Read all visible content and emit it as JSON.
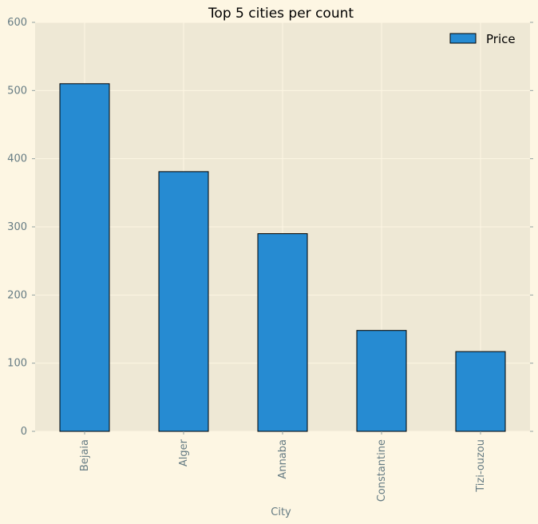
{
  "chart_data": {
    "type": "bar",
    "title": "Top 5 cities per count",
    "xlabel": "City",
    "ylabel": "",
    "categories": [
      "Bejaia",
      "Alger",
      "Annaba",
      "Constantine",
      "Tizi-ouzou"
    ],
    "series": [
      {
        "name": "Price",
        "values": [
          510,
          381,
          290,
          148,
          117
        ]
      }
    ],
    "ylim": [
      0,
      600
    ],
    "yticks": [
      0,
      100,
      200,
      300,
      400,
      500,
      600
    ],
    "grid": true,
    "legend_position": "top-right",
    "colors": {
      "background": "#fdf6e3",
      "plot_background": "#eee8d5",
      "bar": "#268bd2",
      "bar_edge": "#000000",
      "grid": "#fdf6e3",
      "tick_text": "#657b83",
      "axis_spine": "#93a1a1"
    }
  }
}
